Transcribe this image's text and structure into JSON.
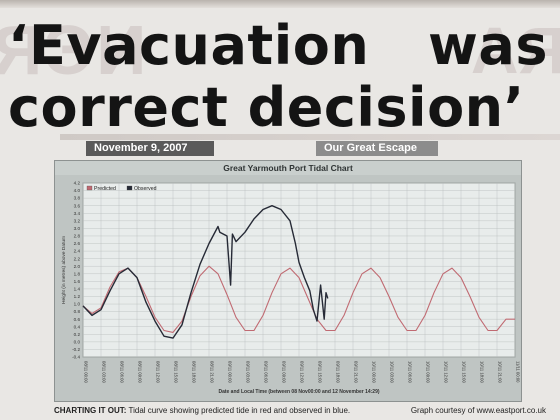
{
  "article": {
    "headline_line1_word1": "‘Evacuation",
    "headline_line1_word2": "was",
    "headline_line2": "correct decision’",
    "date_tag": "November 9, 2007",
    "section_tag": "Our Great Escape",
    "caption_lead": "CHARTING IT OUT:",
    "caption_text": "Tidal curve showing predicted tide in red and observed in blue.",
    "credit": "Graph courtesy of www.eastport.co.uk"
  },
  "colors": {
    "predicted": "#c06a72",
    "observed": "#262a36",
    "plot_bg": "#e8eceb",
    "grid": "#b7bcbb"
  },
  "chart_data": {
    "type": "line",
    "title": "Great Yarmouth Port Tidal Chart",
    "xlabel": "Date and Local Time (between 08 Nov00:00 and 12 November 14:29)",
    "ylabel": "Height (in metres) above Datum",
    "ylim": [
      -0.4,
      4.2
    ],
    "xlim": [
      0,
      24
    ],
    "yticks": [
      "4.2",
      "4.0",
      "3.8",
      "3.6",
      "3.4",
      "3.2",
      "3.0",
      "2.8",
      "2.6",
      "2.4",
      "2.2",
      "2.0",
      "1.8",
      "1.6",
      "1.4",
      "1.2",
      "1.0",
      "0.8",
      "0.6",
      "0.4",
      "0.2",
      "0.0",
      "-0.2",
      "-0.4"
    ],
    "xticks": [
      "08/11 00:00",
      "08/11 03:00",
      "08/11 06:00",
      "08/11 09:00",
      "08/11 12:00",
      "08/11 15:00",
      "08/11 18:00",
      "08/11 21:00",
      "09/11 00:00",
      "09/11 03:00",
      "09/11 06:00",
      "09/11 09:00",
      "09/11 12:00",
      "09/11 15:00",
      "09/11 18:00",
      "09/11 21:00",
      "10/11 00:00",
      "10/11 03:00",
      "10/11 06:00",
      "10/11 09:00",
      "10/11 12:00",
      "10/11 15:00",
      "10/11 18:00",
      "10/11 21:00",
      "11/11 00:00"
    ],
    "grid": true,
    "legend_position": "top-left",
    "series": [
      {
        "name": "Predicted",
        "x": [
          0,
          0.5,
          1,
          1.5,
          2,
          2.5,
          3,
          3.5,
          4,
          4.5,
          5,
          5.5,
          6,
          6.5,
          7,
          7.5,
          8,
          8.5,
          9,
          9.5,
          10,
          10.5,
          11,
          11.5,
          12,
          12.5,
          13,
          13.5,
          14,
          14.5,
          15,
          15.5,
          16,
          16.5,
          17,
          17.5,
          18,
          18.5,
          19,
          19.5,
          20,
          20.5,
          21,
          21.5,
          22,
          22.5,
          23,
          23.5,
          24
        ],
        "values": [
          0.95,
          0.75,
          0.9,
          1.45,
          1.85,
          1.95,
          1.7,
          1.2,
          0.65,
          0.3,
          0.25,
          0.55,
          1.2,
          1.75,
          2.0,
          1.8,
          1.25,
          0.65,
          0.3,
          0.3,
          0.7,
          1.3,
          1.8,
          1.95,
          1.7,
          1.15,
          0.6,
          0.3,
          0.3,
          0.7,
          1.3,
          1.8,
          1.95,
          1.7,
          1.2,
          0.65,
          0.3,
          0.3,
          0.7,
          1.3,
          1.8,
          1.95,
          1.7,
          1.2,
          0.65,
          0.3,
          0.3,
          0.6,
          0.6
        ]
      },
      {
        "name": "Observed",
        "x": [
          0,
          0.5,
          1,
          1.5,
          2,
          2.5,
          3,
          3.5,
          4,
          4.5,
          5,
          5.5,
          6,
          6.5,
          7,
          7.5,
          7.6,
          7.8,
          8,
          8.2,
          8.3,
          8.5,
          9,
          9.5,
          10,
          10.5,
          11,
          11.5,
          11.8,
          12,
          12.3,
          12.6,
          12.8,
          13,
          13.2,
          13.4,
          13.5,
          13.6
        ],
        "values": [
          0.95,
          0.7,
          0.85,
          1.35,
          1.8,
          1.95,
          1.7,
          1.05,
          0.55,
          0.15,
          0.1,
          0.45,
          1.3,
          2.05,
          2.6,
          3.05,
          2.9,
          2.85,
          2.8,
          1.5,
          2.85,
          2.65,
          2.9,
          3.25,
          3.5,
          3.6,
          3.5,
          3.2,
          2.6,
          2.1,
          1.7,
          1.35,
          0.85,
          0.55,
          1.5,
          0.6,
          1.3,
          1.15
        ]
      }
    ]
  }
}
